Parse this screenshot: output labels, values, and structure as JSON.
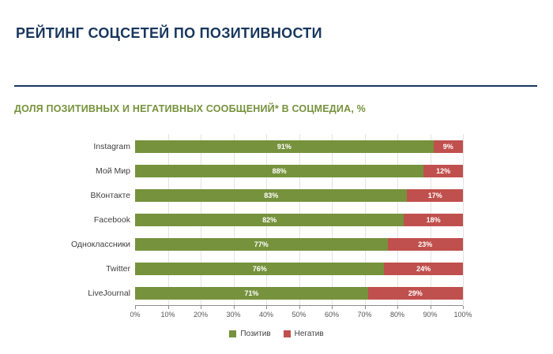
{
  "page": {
    "title": "РЕЙТИНГ СОЦСЕТЕЙ ПО ПОЗИТИВНОСТИ",
    "subtitle": "ДОЛЯ ПОЗИТИВНЫХ И НЕГАТИВНЫХ СООБЩЕНИЙ* В СОЦМЕДИА, %"
  },
  "colors": {
    "title": "#17365D",
    "subtitle": "#76923C",
    "divider": "#17365D",
    "positive": "#76923C",
    "negative": "#C0504D"
  },
  "chart_data": {
    "type": "bar",
    "orientation": "horizontal",
    "stacked": true,
    "title": "ДОЛЯ ПОЗИТИВНЫХ И НЕГАТИВНЫХ СООБЩЕНИЙ* В СОЦМЕДИА, %",
    "categories": [
      "Instagram",
      "Мой Мир",
      "ВКонтакте",
      "Facebook",
      "Одноклассники",
      "Twitter",
      "LiveJournal"
    ],
    "series": [
      {
        "name": "Позитив",
        "color": "#76923C",
        "values": [
          91,
          88,
          83,
          82,
          77,
          76,
          71
        ]
      },
      {
        "name": "Негатив",
        "color": "#C0504D",
        "values": [
          9,
          12,
          17,
          18,
          23,
          24,
          29
        ]
      }
    ],
    "xlim": [
      0,
      100
    ],
    "x_ticks": [
      "0%",
      "10%",
      "20%",
      "30%",
      "40%",
      "50%",
      "60%",
      "70%",
      "80%",
      "90%",
      "100%"
    ],
    "value_suffix": "%",
    "grid": true,
    "legend_position": "bottom"
  }
}
